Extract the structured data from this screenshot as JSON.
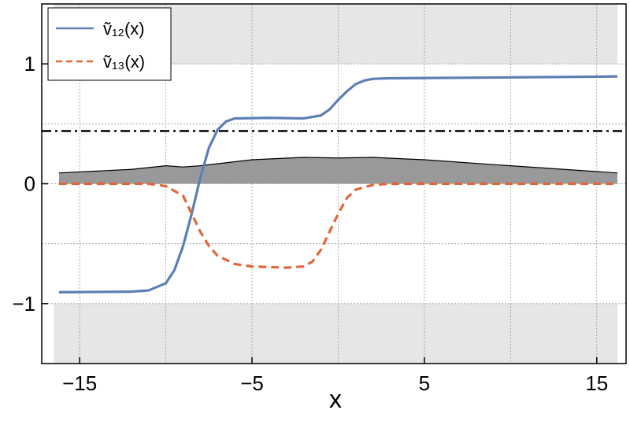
{
  "chart_data": {
    "type": "line",
    "x_label": "x",
    "xlim": [
      -17.2,
      16.7
    ],
    "ylim": [
      -1.5,
      1.5
    ],
    "xticks": [
      {
        "value": -15,
        "label": "−15"
      },
      {
        "value": -5,
        "label": "−5"
      },
      5,
      15
    ],
    "yticks": [
      {
        "value": -1,
        "label": "−1"
      },
      0,
      1
    ],
    "xgrid": [
      -15,
      -10,
      -5,
      0,
      5,
      10,
      15
    ],
    "ygrid": [
      -1,
      -0.5,
      0,
      0.5,
      1
    ],
    "grid": true,
    "shaded_bands": {
      "x": [
        -16.5,
        16.2
      ],
      "y": [
        [
          1,
          1.5
        ],
        [
          -1.5,
          -1
        ]
      ],
      "color": "#e6e6e6"
    },
    "hline": {
      "value": 0.44,
      "color": "#000000"
    },
    "area": {
      "color": "#999999",
      "x": [
        -16.2,
        -12,
        -10,
        -9,
        -8,
        -5,
        -2,
        0,
        2,
        5,
        10,
        16.2
      ],
      "values": [
        0.09,
        0.12,
        0.15,
        0.14,
        0.15,
        0.2,
        0.22,
        0.215,
        0.22,
        0.2,
        0.15,
        0.09
      ]
    },
    "legend": "top-left",
    "series": [
      {
        "name": "ṽ₁₂(x)",
        "color": "#5b7fb5",
        "dash": false,
        "x": [
          -16.2,
          -12,
          -11,
          -10,
          -9.5,
          -9,
          -8.5,
          -8,
          -7.5,
          -7,
          -6.5,
          -6,
          -4,
          -2,
          -1,
          -0.5,
          0,
          0.5,
          1,
          1.5,
          2,
          3,
          8,
          16.2
        ],
        "values": [
          -0.905,
          -0.9,
          -0.89,
          -0.83,
          -0.72,
          -0.52,
          -0.25,
          0.05,
          0.3,
          0.45,
          0.52,
          0.545,
          0.55,
          0.545,
          0.57,
          0.62,
          0.7,
          0.77,
          0.83,
          0.86,
          0.875,
          0.88,
          0.885,
          0.895
        ]
      },
      {
        "name": "ṽ₁₃(x)",
        "color": "#e0673a",
        "dash": true,
        "x": [
          -16.2,
          -11,
          -10,
          -9,
          -8.5,
          -8,
          -7.5,
          -7,
          -6,
          -5,
          -3,
          -2,
          -1.5,
          -1,
          -0.5,
          0,
          0.5,
          1,
          2,
          3,
          16.2
        ],
        "values": [
          0,
          0,
          -0.02,
          -0.1,
          -0.25,
          -0.4,
          -0.52,
          -0.6,
          -0.67,
          -0.69,
          -0.7,
          -0.69,
          -0.65,
          -0.55,
          -0.4,
          -0.25,
          -0.12,
          -0.05,
          -0.01,
          0,
          0
        ]
      }
    ]
  }
}
